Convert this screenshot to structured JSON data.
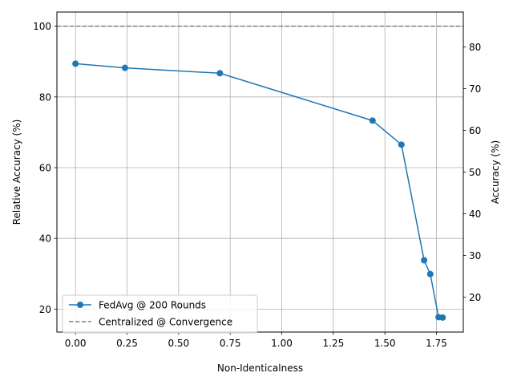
{
  "chart_data": {
    "type": "line",
    "title": "",
    "xlabel": "Non-Identicalness",
    "ylabel": "Relative Accuracy (%)",
    "ylabel_right": "Accuracy (%)",
    "xlim": [
      -0.09,
      1.88
    ],
    "ylim": [
      13.5,
      104
    ],
    "ylim_right": [
      11.6,
      88.4
    ],
    "x_ticks": [
      0.0,
      0.25,
      0.5,
      0.75,
      1.0,
      1.25,
      1.5,
      1.75
    ],
    "x_tick_labels": [
      "0.00",
      "0.25",
      "0.50",
      "0.75",
      "1.00",
      "1.25",
      "1.50",
      "1.75"
    ],
    "y_ticks": [
      20,
      40,
      60,
      80,
      100
    ],
    "y_tick_labels": [
      "20",
      "40",
      "60",
      "80",
      "100"
    ],
    "y_ticks_right": [
      20,
      30,
      40,
      50,
      60,
      70,
      80
    ],
    "y_tick_labels_right": [
      "20",
      "30",
      "40",
      "50",
      "60",
      "70",
      "80"
    ],
    "grid": true,
    "legend_position": "lower-left",
    "series": [
      {
        "name": "FedAvg @ 200 Rounds",
        "style": "solid-line-circle-markers",
        "color": "#1f77b4",
        "x": [
          0.0,
          0.24,
          0.7,
          1.44,
          1.58,
          1.69,
          1.72,
          1.76,
          1.78
        ],
        "y": [
          89.4,
          88.2,
          86.7,
          73.3,
          66.5,
          33.8,
          29.9,
          17.7,
          17.6
        ]
      },
      {
        "name": "Centralized @ Convergence",
        "style": "dashed-horizontal",
        "color": "#808080",
        "y": 100
      }
    ]
  }
}
